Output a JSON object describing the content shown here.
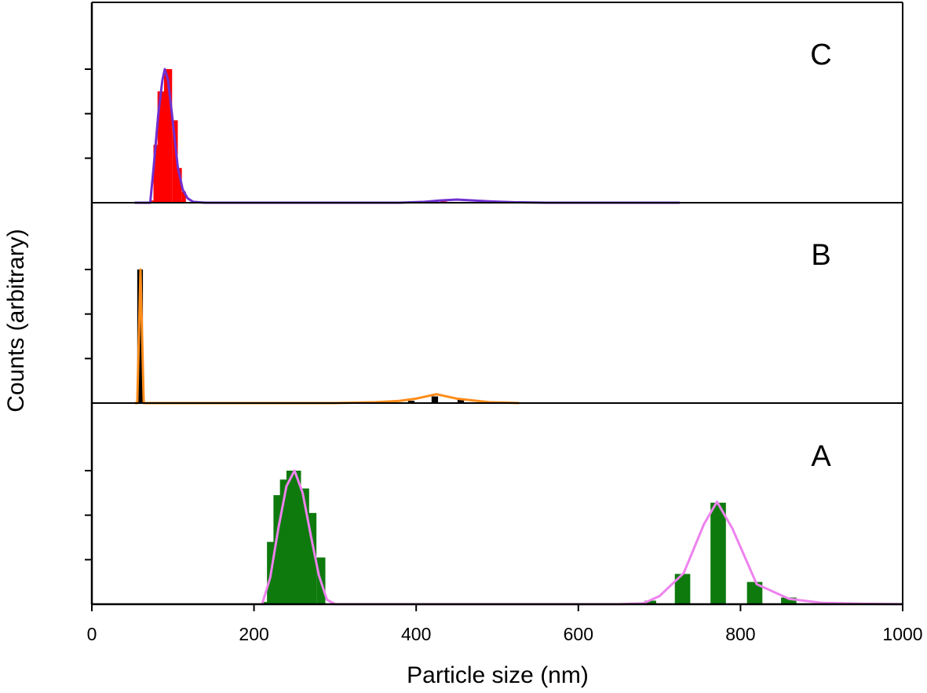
{
  "chart_data": {
    "type": "bar",
    "xlabel": "Particle size (nm)",
    "ylabel": "Counts (arbitrary)",
    "xlim": [
      0,
      1000
    ],
    "xticks": [
      0,
      200,
      400,
      600,
      800,
      1000
    ],
    "grid": false,
    "panels": [
      {
        "label": "C",
        "ylim": [
          0,
          3
        ],
        "bar_color": "#ff0000",
        "fit_color": "#7030d0",
        "bars": [
          {
            "x": 72,
            "w": 4,
            "y": 0.05
          },
          {
            "x": 76,
            "w": 6,
            "y": 1.3
          },
          {
            "x": 81,
            "w": 9,
            "y": 2.5
          },
          {
            "x": 89,
            "w": 10,
            "y": 3.0
          },
          {
            "x": 99,
            "w": 7,
            "y": 1.85
          },
          {
            "x": 105,
            "w": 6,
            "y": 0.78
          },
          {
            "x": 111,
            "w": 5,
            "y": 0.25
          },
          {
            "x": 430,
            "w": 8,
            "y": 0.03
          }
        ],
        "fit": {
          "x": [
            53,
            72,
            76,
            82,
            87,
            90,
            94,
            100,
            106,
            112,
            118,
            125,
            140,
            200,
            300,
            380,
            410,
            430,
            450,
            470,
            490,
            520,
            560,
            600,
            700,
            725
          ],
          "y": [
            0,
            0,
            0.75,
            2.0,
            2.75,
            3.0,
            2.75,
            1.8,
            0.8,
            0.3,
            0.1,
            0.02,
            0,
            0,
            0,
            0,
            0.02,
            0.05,
            0.07,
            0.05,
            0.03,
            0.01,
            0,
            0,
            0,
            0
          ]
        }
      },
      {
        "label": "B",
        "ylim": [
          0,
          3
        ],
        "bar_color": "#000000",
        "fit_color": "#ff8c1a",
        "bars": [
          {
            "x": 56,
            "w": 7,
            "y": 3.0
          },
          {
            "x": 390,
            "w": 8,
            "y": 0.05
          },
          {
            "x": 419,
            "w": 8,
            "y": 0.15
          },
          {
            "x": 451,
            "w": 8,
            "y": 0.07
          }
        ],
        "fit": {
          "x": [
            53,
            56,
            58,
            60,
            62,
            64,
            66,
            100,
            300,
            350,
            380,
            400,
            425,
            450,
            470,
            490,
            510,
            527
          ],
          "y": [
            0,
            0,
            1.5,
            3.0,
            1.5,
            0,
            0,
            0,
            0,
            0.02,
            0.05,
            0.1,
            0.2,
            0.1,
            0.06,
            0.02,
            0.01,
            0
          ]
        }
      },
      {
        "label": "A",
        "ylim": [
          0,
          3
        ],
        "bar_color": "#0e7a0e",
        "fit_color": "#ee82ee",
        "bars": [
          {
            "x": 210,
            "w": 7,
            "y": 0.05
          },
          {
            "x": 216,
            "w": 15,
            "y": 1.4
          },
          {
            "x": 224,
            "w": 16,
            "y": 2.45
          },
          {
            "x": 232,
            "w": 16,
            "y": 2.8
          },
          {
            "x": 240,
            "w": 18,
            "y": 3.0
          },
          {
            "x": 254,
            "w": 14,
            "y": 2.6
          },
          {
            "x": 266,
            "w": 11,
            "y": 2.05
          },
          {
            "x": 277,
            "w": 11,
            "y": 1.05
          },
          {
            "x": 682,
            "w": 14,
            "y": 0.08
          },
          {
            "x": 719,
            "w": 19,
            "y": 0.68
          },
          {
            "x": 763,
            "w": 19,
            "y": 2.28
          },
          {
            "x": 808,
            "w": 19,
            "y": 0.5
          },
          {
            "x": 850,
            "w": 19,
            "y": 0.15
          }
        ],
        "fit": {
          "x": [
            210,
            220,
            230,
            240,
            250,
            260,
            270,
            280,
            290,
            300,
            650,
            680,
            700,
            730,
            755,
            771,
            790,
            820,
            860,
            900,
            950,
            1000
          ],
          "y": [
            0,
            0.6,
            1.7,
            2.65,
            3.0,
            2.5,
            1.55,
            0.65,
            0.1,
            0,
            0,
            0.02,
            0.18,
            0.7,
            1.8,
            2.3,
            1.7,
            0.45,
            0.12,
            0.03,
            0.01,
            0
          ]
        }
      }
    ]
  }
}
